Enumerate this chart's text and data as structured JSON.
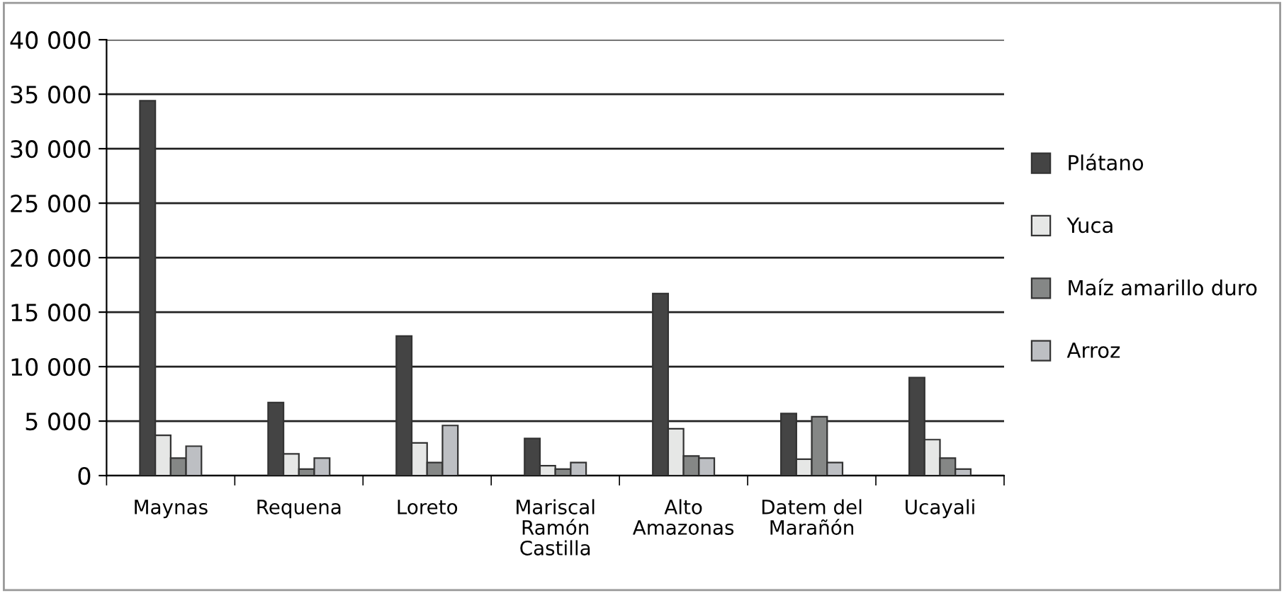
{
  "chart_data": {
    "type": "bar",
    "categories": [
      "Maynas",
      "Requena",
      "Loreto",
      "Mariscal\nRamón\nCastilla",
      "Alto\nAmazonas",
      "Datem del\nMarañón",
      "Ucayali"
    ],
    "series": [
      {
        "name": "Plátano",
        "color": "#444444",
        "values": [
          34400,
          6700,
          12800,
          3400,
          16700,
          5700,
          9000
        ]
      },
      {
        "name": "Yuca",
        "color": "#e6e7e6",
        "values": [
          3700,
          2000,
          3000,
          900,
          4300,
          1500,
          3300
        ]
      },
      {
        "name": "Maíz amarillo duro",
        "color": "#858786",
        "values": [
          1600,
          600,
          1200,
          600,
          1800,
          5400,
          1600
        ]
      },
      {
        "name": "Arroz",
        "color": "#bdbfc3",
        "values": [
          2700,
          1600,
          4600,
          1200,
          1600,
          1200,
          600
        ]
      }
    ],
    "ylim": [
      0,
      40000
    ],
    "yticks": [
      {
        "value": 0,
        "label": "0"
      },
      {
        "value": 5000,
        "label": "5 000"
      },
      {
        "value": 10000,
        "label": "10 000"
      },
      {
        "value": 15000,
        "label": "15 000"
      },
      {
        "value": 20000,
        "label": "20 000"
      },
      {
        "value": 25000,
        "label": "25 000"
      },
      {
        "value": 30000,
        "label": "30 000"
      },
      {
        "value": 35000,
        "label": "35 000"
      },
      {
        "value": 40000,
        "label": "40 000"
      }
    ],
    "grid": "y",
    "legend": "right"
  }
}
